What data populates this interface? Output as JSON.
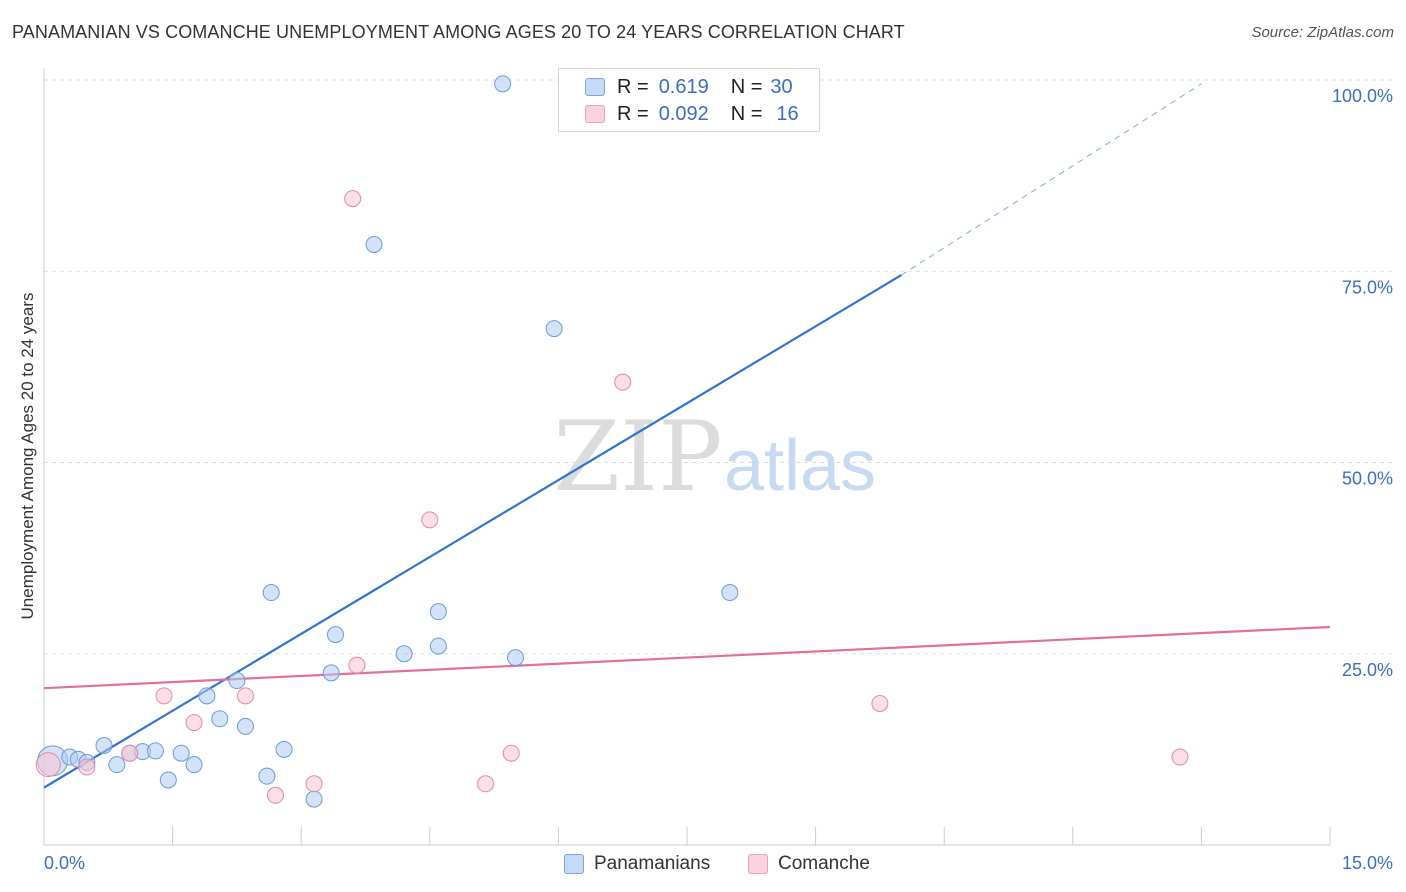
{
  "chart_data": {
    "type": "scatter",
    "title": "PANAMANIAN VS COMANCHE UNEMPLOYMENT AMONG AGES 20 TO 24 YEARS CORRELATION CHART",
    "source": "Source: ZipAtlas.com",
    "ylabel": "Unemployment Among Ages 20 to 24 years",
    "xlabel": "",
    "xlim": [
      0,
      15
    ],
    "ylim": [
      0,
      100
    ],
    "x_tick_labels": [
      "0.0%",
      "15.0%"
    ],
    "y_tick_labels": [
      "100.0%",
      "75.0%",
      "50.0%",
      "25.0%"
    ],
    "watermark": {
      "zip": "ZIP",
      "atlas": "atlas"
    },
    "legend": {
      "r_label": "R =",
      "n_label": "N =",
      "entries": [
        {
          "r": "0.619",
          "n": "30"
        },
        {
          "r": "0.092",
          "n": "16"
        }
      ]
    },
    "series": [
      {
        "name": "Panamanians",
        "color": "#aecbf0",
        "stroke": "#6b9bd8",
        "line_color": "#2f74d0",
        "trend": {
          "x0": 0,
          "y0": 7.5,
          "x1": 10.0,
          "y1": 74.5,
          "x_dash_end": 13.5,
          "y_dash_end": 99.5
        },
        "points": [
          [
            0.1,
            11
          ],
          [
            0.3,
            11.5
          ],
          [
            0.4,
            11.2
          ],
          [
            0.5,
            10.8
          ],
          [
            0.7,
            13
          ],
          [
            0.85,
            10.5
          ],
          [
            1.0,
            12
          ],
          [
            1.15,
            12.2
          ],
          [
            1.3,
            12.3
          ],
          [
            1.45,
            8.5
          ],
          [
            1.6,
            12
          ],
          [
            1.75,
            10.5
          ],
          [
            1.9,
            19.5
          ],
          [
            2.05,
            16.5
          ],
          [
            2.25,
            21.5
          ],
          [
            2.35,
            15.5
          ],
          [
            2.6,
            9
          ],
          [
            2.65,
            33
          ],
          [
            2.8,
            12.5
          ],
          [
            3.15,
            6
          ],
          [
            3.35,
            22.5
          ],
          [
            3.4,
            27.5
          ],
          [
            3.85,
            78.5
          ],
          [
            4.2,
            25
          ],
          [
            4.6,
            30.5
          ],
          [
            4.6,
            26
          ],
          [
            5.35,
            99.5
          ],
          [
            5.5,
            24.5
          ],
          [
            5.95,
            67.5
          ],
          [
            8.0,
            33
          ]
        ]
      },
      {
        "name": "Comanche",
        "color": "#f7c2d2",
        "stroke": "#e58aa6",
        "line_color": "#e07099",
        "trend": {
          "x0": 0,
          "y0": 20.5,
          "x1": 15,
          "y1": 28.5
        },
        "points": [
          [
            0.05,
            10.5
          ],
          [
            0.5,
            10.2
          ],
          [
            1.0,
            12
          ],
          [
            1.4,
            19.5
          ],
          [
            1.75,
            16
          ],
          [
            2.35,
            19.5
          ],
          [
            2.7,
            6.5
          ],
          [
            3.15,
            8
          ],
          [
            3.6,
            84.5
          ],
          [
            3.65,
            23.5
          ],
          [
            4.5,
            42.5
          ],
          [
            5.15,
            8
          ],
          [
            5.45,
            12
          ],
          [
            6.75,
            60.5
          ],
          [
            9.75,
            18.5
          ],
          [
            13.25,
            11.5
          ]
        ]
      }
    ]
  }
}
